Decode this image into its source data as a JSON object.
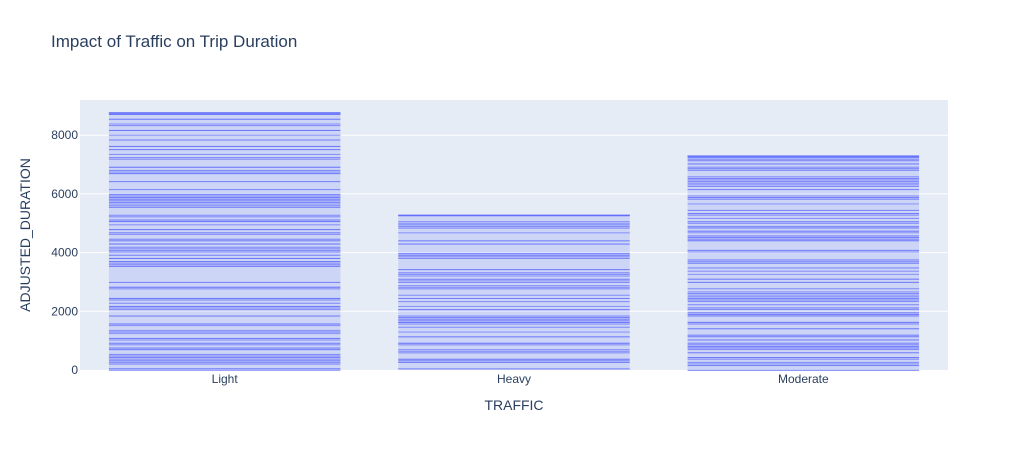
{
  "chart_data": {
    "type": "bar",
    "title": "Impact of Traffic on Trip Duration",
    "xlabel": "TRAFFIC",
    "ylabel": "ADJUSTED_DURATION",
    "categories": [
      "Light",
      "Heavy",
      "Moderate"
    ],
    "values": [
      8780,
      5290,
      7310
    ],
    "ylim": [
      0,
      9200
    ],
    "yticks": [
      0,
      2000,
      4000,
      6000,
      8000
    ],
    "ytick_labels": [
      "0",
      "2000",
      "4000",
      "6000",
      "8000"
    ],
    "grid": true,
    "plot_background": "#e5ecf6",
    "bar_color": "#636efa"
  }
}
